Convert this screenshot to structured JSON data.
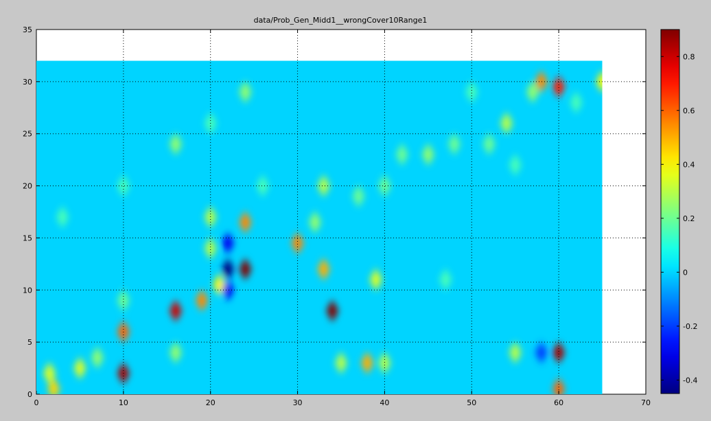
{
  "figure": {
    "title": "data/Prob_Gen_Midd1__wrongCover10Range1",
    "background_color": "#c8c8c8"
  },
  "chart_data": {
    "type": "heatmap",
    "title": "data/Prob_Gen_Midd1__wrongCover10Range1",
    "xlabel": "",
    "ylabel": "",
    "xlim": [
      0,
      70
    ],
    "ylim": [
      0,
      35
    ],
    "x_ticks": [
      0,
      10,
      20,
      30,
      40,
      50,
      60,
      70
    ],
    "y_ticks": [
      0,
      5,
      10,
      15,
      20,
      25,
      30,
      35
    ],
    "grid": true,
    "colormap": "jet",
    "image_extent": {
      "x": [
        0,
        65
      ],
      "y": [
        0,
        32
      ]
    },
    "background_value": 0,
    "colorbar": {
      "range": [
        -0.45,
        0.9
      ],
      "ticks": [
        -0.4,
        -0.2,
        0,
        0.2,
        0.4,
        0.6,
        0.8
      ],
      "tick_labels": [
        "-0.4",
        "-0.2",
        "0",
        "0.2",
        "0.4",
        "0.6",
        "0.8"
      ]
    },
    "points": [
      {
        "x": 10,
        "y": 2,
        "v": 0.85
      },
      {
        "x": 10,
        "y": 6,
        "v": 0.6
      },
      {
        "x": 16,
        "y": 8,
        "v": 0.8
      },
      {
        "x": 19,
        "y": 9,
        "v": 0.55
      },
      {
        "x": 21,
        "y": 10.5,
        "v": 0.4
      },
      {
        "x": 22,
        "y": 12,
        "v": -0.45
      },
      {
        "x": 22,
        "y": 10,
        "v": -0.3
      },
      {
        "x": 22,
        "y": 14.5,
        "v": -0.3
      },
      {
        "x": 24,
        "y": 12,
        "v": 0.9
      },
      {
        "x": 24,
        "y": 16.5,
        "v": 0.55
      },
      {
        "x": 30,
        "y": 14.5,
        "v": 0.55
      },
      {
        "x": 33,
        "y": 12,
        "v": 0.5
      },
      {
        "x": 34,
        "y": 8,
        "v": 0.9
      },
      {
        "x": 38,
        "y": 3,
        "v": 0.5
      },
      {
        "x": 39,
        "y": 11,
        "v": 0.35
      },
      {
        "x": 58,
        "y": 4,
        "v": -0.2
      },
      {
        "x": 60,
        "y": 4,
        "v": 0.85
      },
      {
        "x": 58,
        "y": 30,
        "v": 0.55
      },
      {
        "x": 60,
        "y": 29.5,
        "v": 0.7
      },
      {
        "x": 60,
        "y": 0.5,
        "v": 0.6
      },
      {
        "x": 65,
        "y": 30,
        "v": 0.4
      },
      {
        "x": 1.5,
        "y": 2,
        "v": 0.35
      },
      {
        "x": 5,
        "y": 2.5,
        "v": 0.35
      },
      {
        "x": 2,
        "y": 0.5,
        "v": 0.45
      },
      {
        "x": 24,
        "y": 29,
        "v": 0.25
      },
      {
        "x": 16,
        "y": 24,
        "v": 0.25
      },
      {
        "x": 20,
        "y": 14,
        "v": 0.3
      },
      {
        "x": 20,
        "y": 17,
        "v": 0.3
      },
      {
        "x": 33,
        "y": 20,
        "v": 0.3
      },
      {
        "x": 32,
        "y": 16.5,
        "v": 0.25
      },
      {
        "x": 35,
        "y": 3,
        "v": 0.3
      },
      {
        "x": 40,
        "y": 3,
        "v": 0.3
      },
      {
        "x": 55,
        "y": 4,
        "v": 0.3
      },
      {
        "x": 54,
        "y": 26,
        "v": 0.3
      },
      {
        "x": 57,
        "y": 29,
        "v": 0.25
      },
      {
        "x": 45,
        "y": 23,
        "v": 0.25
      },
      {
        "x": 48,
        "y": 24,
        "v": 0.2
      },
      {
        "x": 52,
        "y": 24,
        "v": 0.2
      },
      {
        "x": 42,
        "y": 23,
        "v": 0.2
      },
      {
        "x": 40,
        "y": 20,
        "v": 0.2
      },
      {
        "x": 37,
        "y": 19,
        "v": 0.2
      },
      {
        "x": 7,
        "y": 3.5,
        "v": 0.25
      },
      {
        "x": 16,
        "y": 4,
        "v": 0.25
      },
      {
        "x": 10,
        "y": 9,
        "v": 0.2
      },
      {
        "x": 47,
        "y": 11,
        "v": 0.15
      },
      {
        "x": 3,
        "y": 17,
        "v": 0.15
      },
      {
        "x": 10,
        "y": 20,
        "v": 0.15
      },
      {
        "x": 50,
        "y": 29,
        "v": 0.15
      },
      {
        "x": 55,
        "y": 22,
        "v": 0.15
      },
      {
        "x": 62,
        "y": 28,
        "v": 0.15
      },
      {
        "x": 20,
        "y": 26,
        "v": 0.15
      },
      {
        "x": 26,
        "y": 20,
        "v": 0.15
      }
    ]
  }
}
